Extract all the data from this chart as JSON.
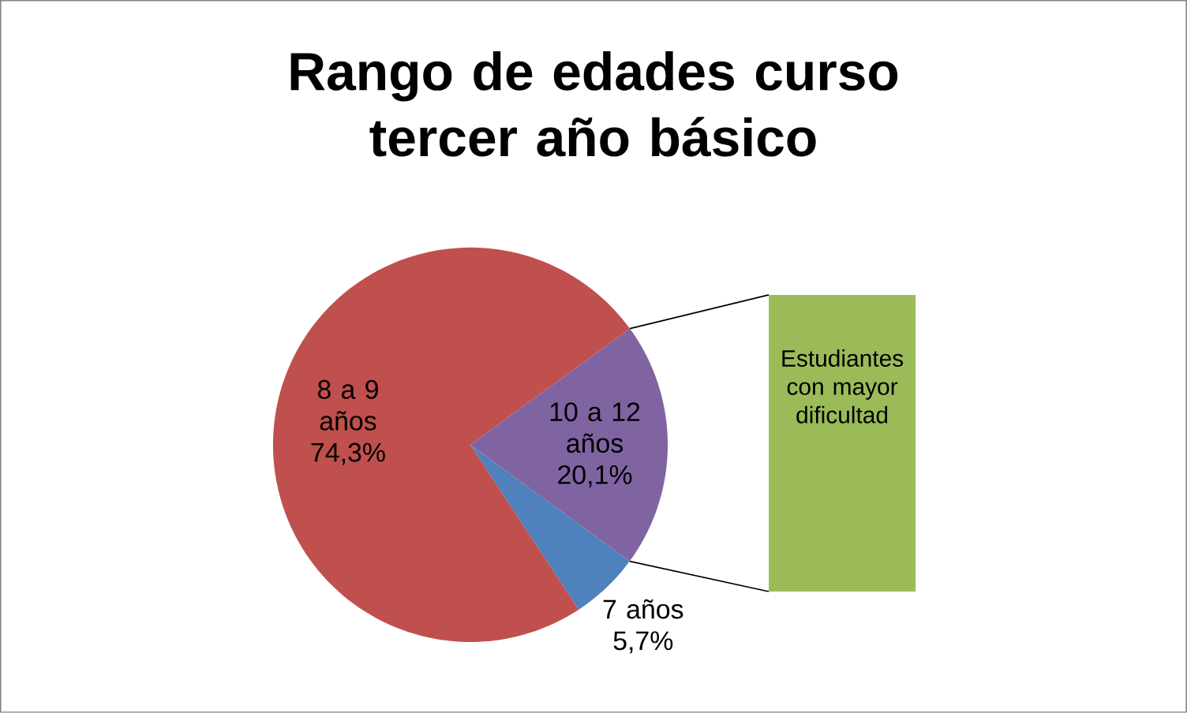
{
  "chart_data": {
    "type": "pie",
    "title": "Rango de edades curso tercer año básico",
    "categories": [
      "7 años",
      "8 a 9 años",
      "10 a 12 años"
    ],
    "values": [
      5.7,
      74.3,
      20.1
    ],
    "colors": [
      "#4f81bd",
      "#c0504d",
      "#8064a2"
    ],
    "value_labels": [
      "5,7%",
      "74,3%",
      "20,1%"
    ],
    "annotations": [
      "Estudiantes con mayor dificultad"
    ]
  }
}
